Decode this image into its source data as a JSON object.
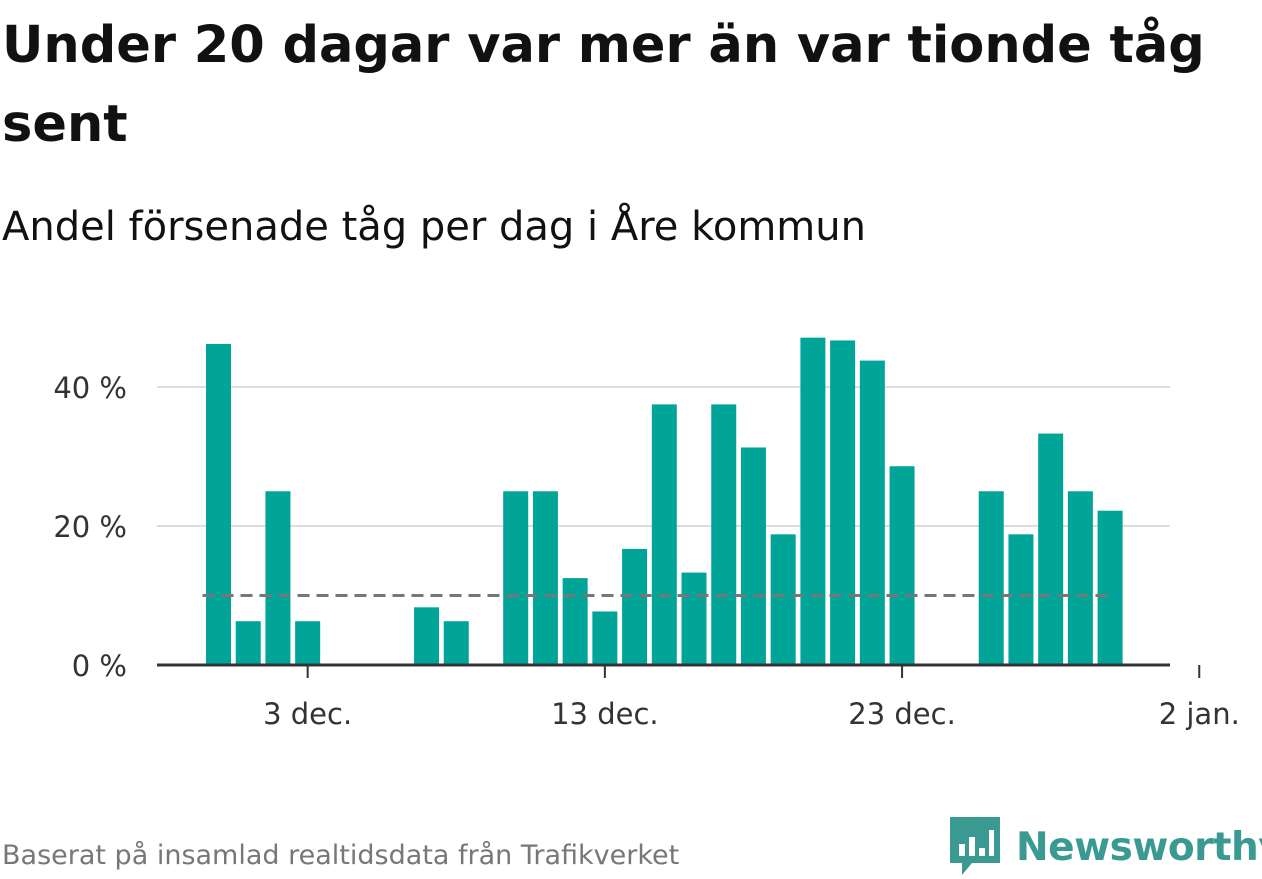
{
  "title": "Under 20 dagar var mer än var tionde tåg sent",
  "subtitle": "Andel försenade tåg per dag i Åre kommun",
  "source": "Baserat på insamlad realtidsdata från Trafikverket",
  "brand": {
    "name": "Newsworthy",
    "icon": "newsworthy-logo-icon",
    "color": "#3a9a92"
  },
  "colors": {
    "bar": "#00a598",
    "reference_line": "#777777",
    "grid": "#dddddd",
    "axis": "#333333"
  },
  "chart_data": {
    "type": "bar",
    "x_start": "2023-11-30",
    "x_end": "2024-01-02",
    "x_ticks": [
      {
        "date": "2023-12-03",
        "label": "3 dec."
      },
      {
        "date": "2023-12-13",
        "label": "13 dec."
      },
      {
        "date": "2023-12-23",
        "label": "23 dec."
      },
      {
        "date": "2024-01-02",
        "label": "2 jan."
      }
    ],
    "y_ticks": [
      {
        "value": 0,
        "label": "0 %"
      },
      {
        "value": 20,
        "label": "20 %"
      },
      {
        "value": 40,
        "label": "40 %"
      }
    ],
    "ylim": [
      0,
      50
    ],
    "grid": true,
    "reference_line": 10,
    "series": [
      {
        "x": [
          "2023-11-30",
          "2023-12-01",
          "2023-12-02",
          "2023-12-03",
          "2023-12-04",
          "2023-12-05",
          "2023-12-06",
          "2023-12-07",
          "2023-12-08",
          "2023-12-09",
          "2023-12-10",
          "2023-12-11",
          "2023-12-12",
          "2023-12-13",
          "2023-12-14",
          "2023-12-15",
          "2023-12-16",
          "2023-12-17",
          "2023-12-18",
          "2023-12-19",
          "2023-12-20",
          "2023-12-21",
          "2023-12-22",
          "2023-12-23",
          "2023-12-24",
          "2023-12-25",
          "2023-12-26",
          "2023-12-27",
          "2023-12-28",
          "2023-12-29",
          "2023-12-30",
          "2023-12-31",
          "2024-01-01"
        ],
        "values": [
          46.2,
          6.3,
          25,
          6.3,
          0,
          0,
          0,
          8.3,
          6.3,
          0,
          25,
          25,
          12.5,
          7.7,
          16.7,
          37.5,
          13.3,
          37.5,
          31.3,
          18.8,
          47.1,
          46.7,
          43.8,
          28.6,
          0,
          0,
          25,
          18.8,
          33.3,
          25,
          22.2,
          0,
          0
        ]
      }
    ]
  }
}
